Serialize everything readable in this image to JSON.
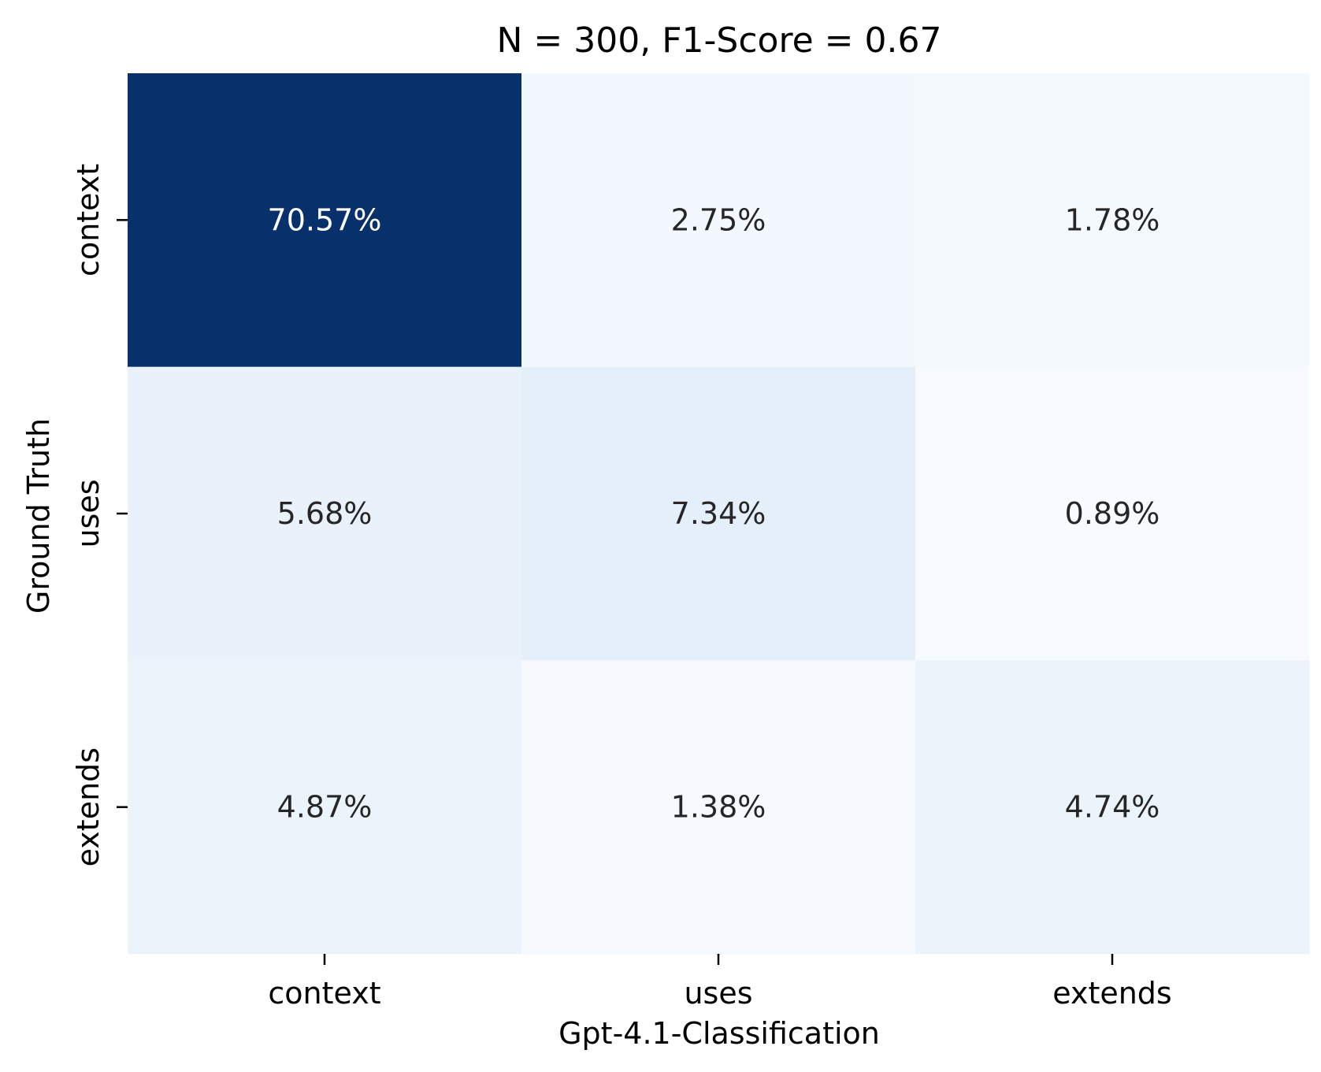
{
  "chart_data": {
    "type": "heatmap",
    "title": "N = 300, F1-Score = 0.67",
    "xlabel": "Gpt-4.1-Classification",
    "ylabel": "Ground Truth",
    "x_categories": [
      "context",
      "uses",
      "extends"
    ],
    "y_categories": [
      "context",
      "uses",
      "extends"
    ],
    "values": [
      [
        70.57,
        2.75,
        1.78
      ],
      [
        5.68,
        7.34,
        0.89
      ],
      [
        4.87,
        1.38,
        4.74
      ]
    ],
    "value_labels": [
      [
        "70.57%",
        "2.75%",
        "1.78%"
      ],
      [
        "5.68%",
        "7.34%",
        "0.89%"
      ],
      [
        "4.87%",
        "1.38%",
        "4.74%"
      ]
    ],
    "colormap": "Blues",
    "colors": {
      "low": "#f7fbff",
      "high": "#08306b",
      "text_dark": "#262626",
      "text_light": "#ffffff"
    },
    "colorbar": false,
    "grid": false
  }
}
